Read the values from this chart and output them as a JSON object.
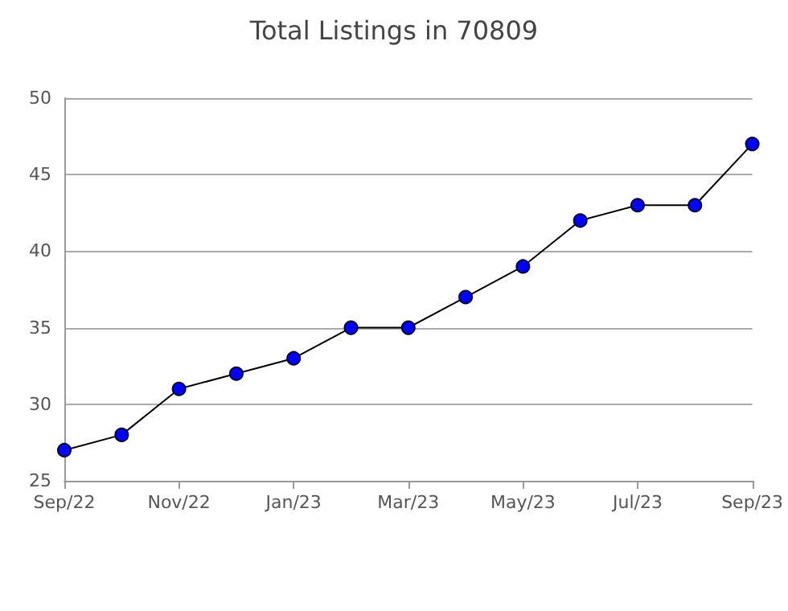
{
  "chart_data": {
    "type": "line",
    "title": "Total Listings in 70809",
    "categories": [
      "Sep/22",
      null,
      "Nov/22",
      null,
      "Jan/23",
      null,
      "Mar/23",
      null,
      "May/23",
      null,
      "Jul/23",
      null,
      "Sep/23"
    ],
    "series": [
      {
        "color": "#0000ff",
        "values": [
          27,
          28,
          31,
          32,
          33,
          35,
          35,
          37,
          39,
          42,
          43,
          43,
          47
        ]
      }
    ],
    "ylim": [
      25,
      50
    ],
    "yticks": [
      25,
      30,
      35,
      40,
      45,
      50
    ],
    "grid": "y",
    "marker": "circle",
    "line_style": "solid"
  }
}
